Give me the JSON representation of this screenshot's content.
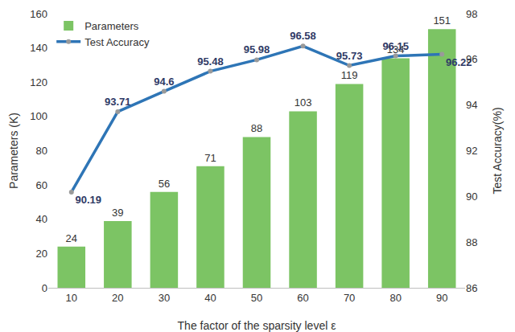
{
  "chart_data": {
    "type": "bar",
    "x_label": "The factor of the sparsity level ε",
    "y_label": "Parameters (K)",
    "y2_label": "Test Accuracy(%)",
    "categories": [
      10,
      20,
      30,
      40,
      50,
      60,
      70,
      80,
      90
    ],
    "series": [
      {
        "name": "Parameters",
        "type": "bar",
        "color": "#7cc464",
        "values": [
          24,
          39,
          56,
          71,
          88,
          103,
          119,
          134,
          151
        ]
      },
      {
        "name": "Test Accuracy",
        "type": "line",
        "axis": "y2",
        "color": "#2e75b6",
        "marker": "circle",
        "values": [
          90.19,
          93.71,
          94.6,
          95.48,
          95.98,
          96.58,
          95.73,
          96.15,
          96.22
        ]
      }
    ],
    "ylim": [
      0,
      160
    ],
    "yticks": [
      0,
      20,
      40,
      60,
      80,
      100,
      120,
      140,
      160
    ],
    "y2lim": [
      86,
      98
    ],
    "y2ticks": [
      86,
      88,
      90,
      92,
      94,
      96,
      98
    ],
    "data_labels": true,
    "legend": "top-left",
    "grid": false
  }
}
